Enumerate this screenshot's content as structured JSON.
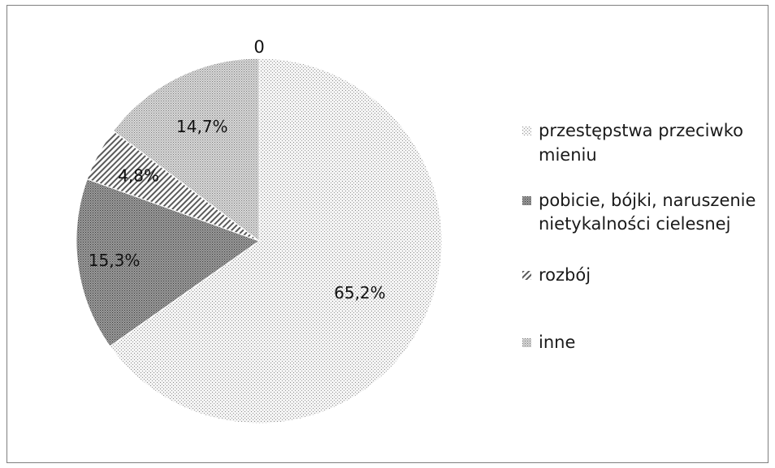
{
  "chart_data": {
    "type": "pie",
    "title": "",
    "categories": [
      "przestępstwa przeciwko mieniu",
      "pobicie, bójki, naruszenie nietykalności cielesnej",
      "rozbój",
      "inne"
    ],
    "values": [
      65.2,
      15.3,
      4.8,
      14.7
    ],
    "value_labels": [
      "65,2%",
      "15,3%",
      "4,8%",
      "14,7%"
    ],
    "extra_label": "0",
    "start_angle": "top",
    "direction": "clockwise",
    "legend_position": "right",
    "colors": [
      "#e6e6e6",
      "#8c8c8c",
      "#bdbdbd",
      "#c8c8c8"
    ],
    "patterns": [
      "dotted",
      "dark-dots",
      "diagonal-stripes",
      "dense-dots"
    ]
  }
}
